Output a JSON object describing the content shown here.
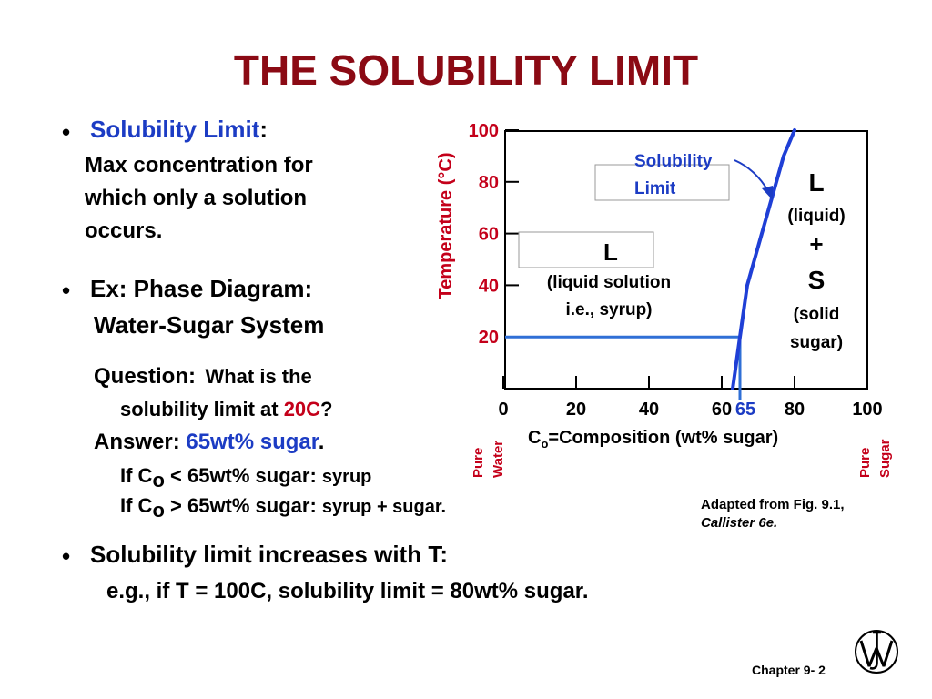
{
  "title": "THE SOLUBILITY LIMIT",
  "bullet_char": "•",
  "bullet1": {
    "term": "Solubility Limit",
    "colon": ":",
    "lines": [
      "Max concentration for",
      "which only a solution",
      "occurs."
    ]
  },
  "bullet2": {
    "line1": "Ex:  Phase Diagram:",
    "line2": "Water-Sugar System"
  },
  "question": {
    "label": "Question:",
    "text1": "What is the",
    "text2_pre": "solubility limit at ",
    "text2_hl": "20C",
    "text2_post": "?"
  },
  "answer": {
    "label": "Answer: ",
    "value": "65wt% sugar",
    "period": "."
  },
  "cond1": {
    "pre": "If C",
    "sub": "o",
    "mid": "  < 65wt% sugar: ",
    "tail": "syrup"
  },
  "cond2": {
    "pre": "If C",
    "sub": "o",
    "mid": "  > 65wt% sugar: ",
    "tail": "syrup + sugar."
  },
  "bullet3": {
    "line1": "Solubility limit increases with T:",
    "line2": "e.g., if  T = 100C, solubility limit = 80wt% sugar."
  },
  "figure_caption": {
    "line1": "Adapted from Fig. 9.1,",
    "line2": "Callister 6e."
  },
  "footer": {
    "chapter": "Chapter 9- 2"
  },
  "colors": {
    "title": "#8b0a14",
    "highlight_blue": "#1c3cc4",
    "highlight_red": "#c4001a",
    "curve": "#1f3fd6",
    "guide": "#2f6fd6"
  },
  "chart_data": {
    "type": "line",
    "title": "",
    "ylabel": "Temperature (°C)",
    "xlabel_pre": "C",
    "xlabel_sub": "o",
    "xlabel_post": "=Composition (wt% sugar)",
    "ylim": [
      0,
      100
    ],
    "xlim": [
      0,
      100
    ],
    "y_ticks": [
      "100",
      "80",
      "60",
      "40",
      "20"
    ],
    "x_ticks": [
      "0",
      "20",
      "40",
      "60",
      "80",
      "100"
    ],
    "highlight_x_label": "65",
    "x_end_labels": {
      "left": [
        "Pure",
        "Water"
      ],
      "right": [
        "Pure",
        "Sugar"
      ]
    },
    "series": [
      {
        "name": "Solubility Limit",
        "points": [
          [
            63,
            0
          ],
          [
            64,
            10
          ],
          [
            65,
            20
          ],
          [
            66,
            30
          ],
          [
            67,
            40
          ],
          [
            69,
            50
          ],
          [
            71,
            60
          ],
          [
            73,
            70
          ],
          [
            75,
            80
          ],
          [
            77,
            90
          ],
          [
            80,
            100
          ]
        ]
      }
    ],
    "guide_point": {
      "x": 65,
      "y": 20
    },
    "annotations": {
      "solubility_limit": [
        "Solubility",
        "Limit"
      ],
      "region_left": {
        "symbol": "L",
        "lines": [
          "(liquid solution",
          "i.e., syrup)"
        ]
      },
      "region_right": [
        "L",
        "(liquid)",
        "+",
        "S",
        "(solid",
        "sugar)"
      ]
    }
  }
}
